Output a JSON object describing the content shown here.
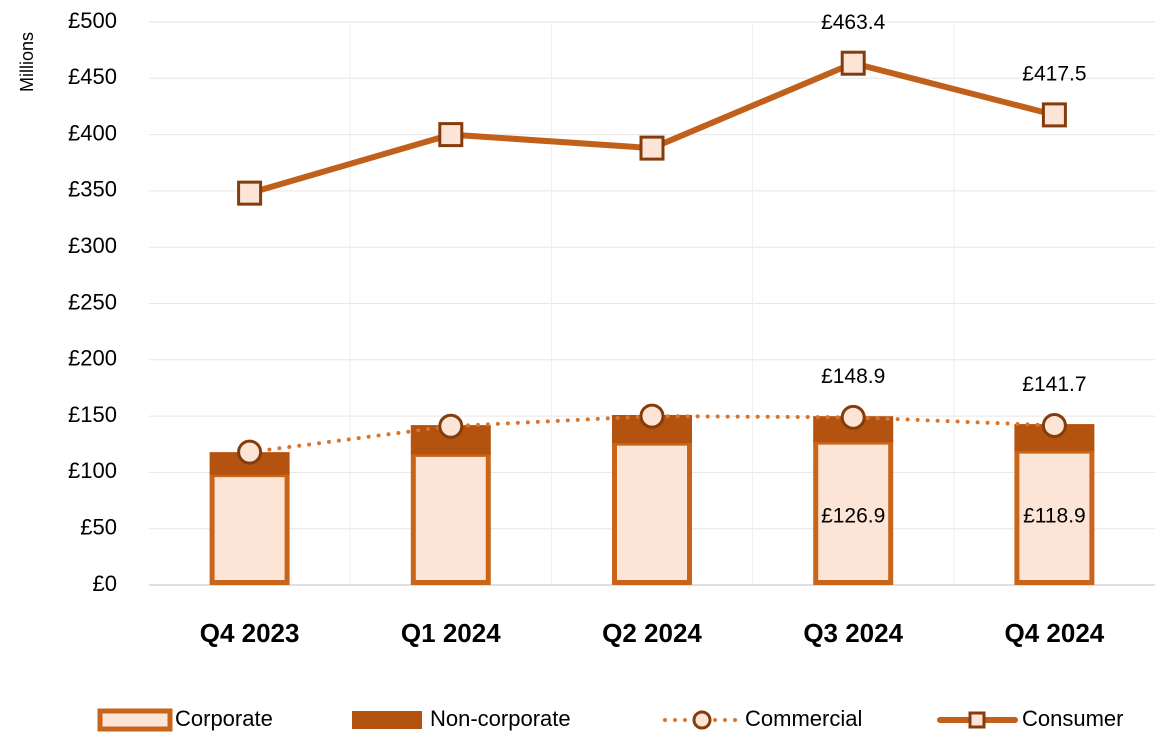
{
  "chart_data": {
    "type": "bar",
    "y_label": "Millions",
    "categories": [
      "Q4 2023",
      "Q1 2024",
      "Q2 2024",
      "Q3 2024",
      "Q4 2024"
    ],
    "stacked": true,
    "grid": true,
    "legend": "bottom",
    "ylim": [
      0,
      500
    ],
    "yticks": [
      {
        "value": 0,
        "label": "£0"
      },
      {
        "value": 50,
        "label": "£50"
      },
      {
        "value": 100,
        "label": "£100"
      },
      {
        "value": 150,
        "label": "£150"
      },
      {
        "value": 200,
        "label": "£200"
      },
      {
        "value": 250,
        "label": "£250"
      },
      {
        "value": 300,
        "label": "£300"
      },
      {
        "value": 350,
        "label": "£350"
      },
      {
        "value": 400,
        "label": "£400"
      },
      {
        "value": 450,
        "label": "£450"
      },
      {
        "value": 500,
        "label": "£500"
      }
    ],
    "series": [
      {
        "name": "Corporate",
        "type": "bar",
        "color": "#fce4d6",
        "edge": "#c8651b",
        "values": [
          98,
          116,
          126,
          126.9,
          118.9
        ],
        "value_labels": [
          null,
          null,
          null,
          "£126.9",
          "£118.9"
        ]
      },
      {
        "name": "Non-corporate",
        "type": "bar",
        "color": "#b4520f",
        "values": [
          20,
          26,
          25,
          23,
          24
        ]
      },
      {
        "name": "Commercial",
        "type": "line",
        "color": "#d9752a",
        "dash": "dotted",
        "marker": "circle",
        "values": [
          118,
          141,
          150,
          148.9,
          141.7
        ],
        "value_labels": [
          null,
          null,
          null,
          "£148.9",
          "£141.7"
        ]
      },
      {
        "name": "Consumer",
        "type": "line",
        "color": "#c0601a",
        "marker": "square",
        "values": [
          348,
          400,
          388,
          463.4,
          417.5
        ],
        "value_labels": [
          null,
          null,
          null,
          "£463.4",
          "£417.5"
        ]
      }
    ]
  }
}
